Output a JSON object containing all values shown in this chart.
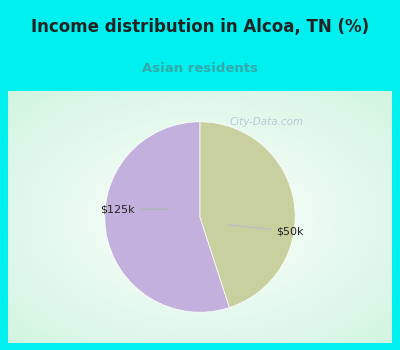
{
  "title": "Income distribution in Alcoa, TN (%)",
  "subtitle": "Asian residents",
  "subtitle_color": "#33aaaa",
  "title_color": "#222222",
  "background_color": "#00efef",
  "slices": [
    {
      "label": "$50k",
      "value": 55,
      "color": "#c4b0dc",
      "label_color": "#222222"
    },
    {
      "label": "$125k",
      "value": 45,
      "color": "#c8d0a0",
      "label_color": "#222222"
    }
  ],
  "watermark": "City-Data.com",
  "start_angle": 90,
  "border_color": "#00efef",
  "border_width": 8
}
